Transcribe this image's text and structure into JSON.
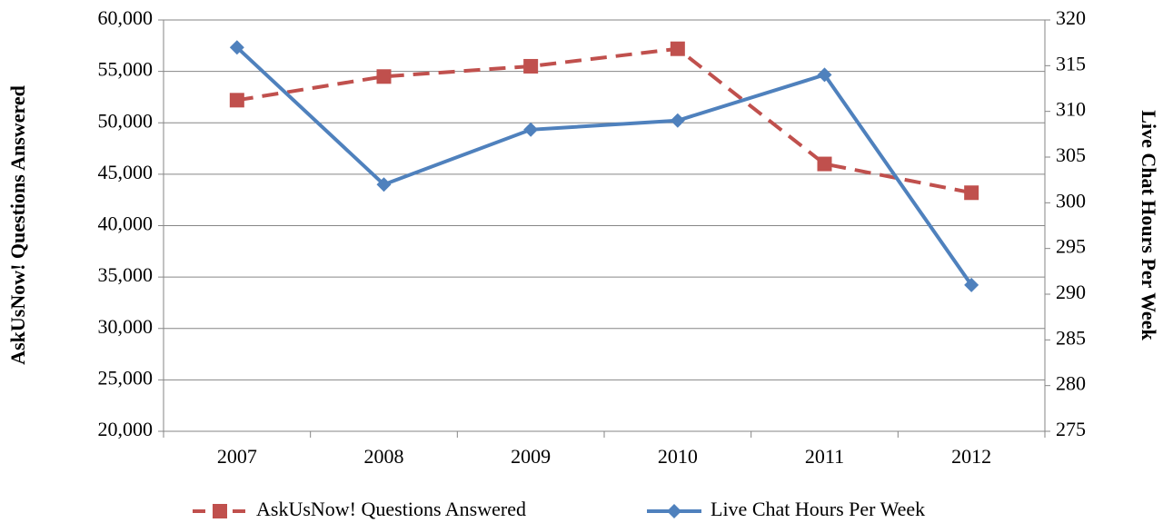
{
  "chart_data": {
    "type": "line",
    "y_label": "AskUsNow! Questions Answered",
    "y2_label": "Live Chat Hours Per Week",
    "categories": [
      "2007",
      "2008",
      "2009",
      "2010",
      "2011",
      "2012"
    ],
    "series": [
      {
        "name": "AskUsNow! Questions Answered",
        "color": "#c0504d",
        "dash": true,
        "marker": "square",
        "values": [
          52200,
          54500,
          55500,
          57200,
          46000,
          43200
        ]
      },
      {
        "name": "Live Chat Hours Per Week",
        "color": "#4f81bd",
        "dash": false,
        "marker": "diamond",
        "axis": "y2",
        "values": [
          317,
          302,
          308,
          309,
          314,
          291
        ]
      }
    ],
    "ylim": [
      20000,
      60000
    ],
    "yticks": [
      {
        "value": 20000,
        "label": "20,000"
      },
      {
        "value": 25000,
        "label": "25,000"
      },
      {
        "value": 30000,
        "label": "30,000"
      },
      {
        "value": 35000,
        "label": "35,000"
      },
      {
        "value": 40000,
        "label": "40,000"
      },
      {
        "value": 45000,
        "label": "45,000"
      },
      {
        "value": 50000,
        "label": "50,000"
      },
      {
        "value": 55000,
        "label": "55,000"
      },
      {
        "value": 60000,
        "label": "60,000"
      }
    ],
    "y2lim": [
      275,
      320
    ],
    "y2ticks": [
      275,
      280,
      285,
      290,
      295,
      300,
      305,
      310,
      315,
      320
    ],
    "grid": true,
    "legend": "bottom"
  }
}
